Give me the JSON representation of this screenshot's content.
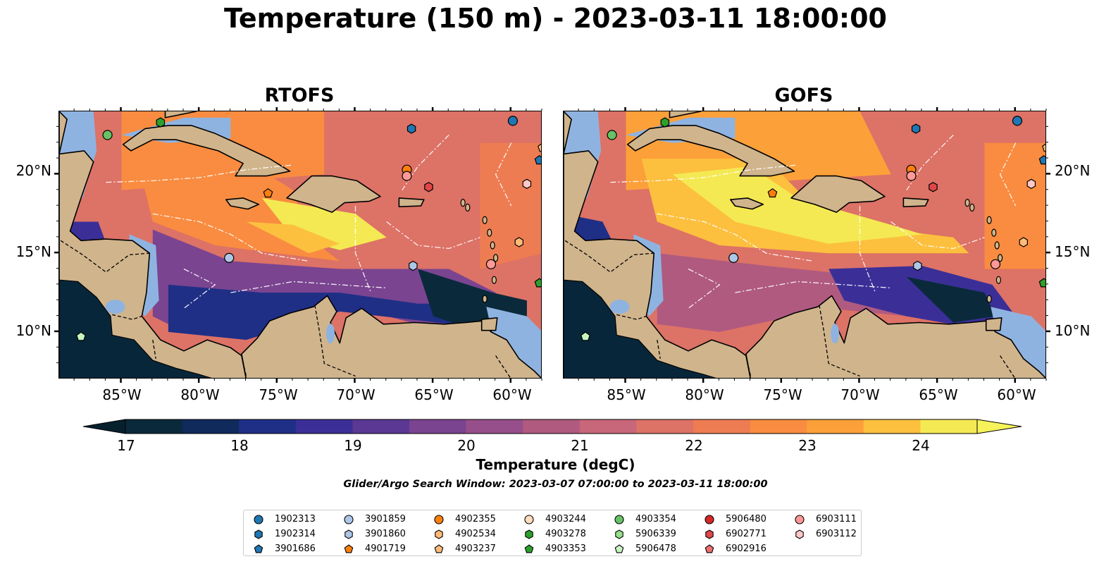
{
  "title": "Temperature (150 m) - 2023-03-11 18:00:00",
  "panels": [
    {
      "title": "RTOFS",
      "kind": "rtofs"
    },
    {
      "title": "GOFS",
      "kind": "gofs"
    }
  ],
  "x_ticks": [
    "85°W",
    "80°W",
    "75°W",
    "70°W",
    "65°W",
    "60°W"
  ],
  "y_ticks": [
    "20°N",
    "15°N",
    "10°N"
  ],
  "colorbar": {
    "label": "Temperature (degC)",
    "ticks": [
      "17",
      "18",
      "19",
      "20",
      "21",
      "22",
      "23",
      "24"
    ],
    "colors": [
      "#0a2a3b",
      "#102a5c",
      "#1f2f86",
      "#3b2f97",
      "#5a3894",
      "#7a4490",
      "#964f8a",
      "#b05a80",
      "#c8677a",
      "#dd7266",
      "#ee7c52",
      "#f98c40",
      "#fca03a",
      "#fcc03e",
      "#f4e952"
    ]
  },
  "search_window": "Glider/Argo Search Window: 2023-03-07 07:00:00 to 2023-03-11 18:00:00",
  "legend": {
    "items": [
      {
        "id": "1902313",
        "color": "#1f77b4",
        "shape": "circle"
      },
      {
        "id": "1902314",
        "color": "#1f77b4",
        "shape": "hexagon"
      },
      {
        "id": "3901686",
        "color": "#1f77b4",
        "shape": "pentagon"
      },
      {
        "id": "3901859",
        "color": "#aec7e8",
        "shape": "circle"
      },
      {
        "id": "3901860",
        "color": "#aec7e8",
        "shape": "hexagon"
      },
      {
        "id": "4901719",
        "color": "#ff7f0e",
        "shape": "pentagon"
      },
      {
        "id": "4902355",
        "color": "#ff7f0e",
        "shape": "circle"
      },
      {
        "id": "4902534",
        "color": "#ffbb78",
        "shape": "hexagon"
      },
      {
        "id": "4903237",
        "color": "#ffbb78",
        "shape": "pentagon"
      },
      {
        "id": "4903244",
        "color": "#ffdcbe",
        "shape": "circle"
      },
      {
        "id": "4903278",
        "color": "#2ca02c",
        "shape": "hexagon"
      },
      {
        "id": "4903353",
        "color": "#2ca02c",
        "shape": "pentagon"
      },
      {
        "id": "4903354",
        "color": "#66c266",
        "shape": "circle"
      },
      {
        "id": "5906339",
        "color": "#98df8a",
        "shape": "hexagon"
      },
      {
        "id": "5906478",
        "color": "#c7f5c0",
        "shape": "pentagon"
      },
      {
        "id": "5906480",
        "color": "#d62728",
        "shape": "circle"
      },
      {
        "id": "6902771",
        "color": "#e0474a",
        "shape": "hexagon"
      },
      {
        "id": "6902916",
        "color": "#ee6f70",
        "shape": "pentagon"
      },
      {
        "id": "6903111",
        "color": "#ff9896",
        "shape": "circle"
      },
      {
        "id": "6903112",
        "color": "#ffc8c7",
        "shape": "hexagon"
      }
    ]
  },
  "map_data": {
    "lon_range": [
      -89,
      -58
    ],
    "lat_range": [
      7,
      24
    ],
    "markers": [
      {
        "id": "3901859",
        "color": "#aec7e8",
        "shape": "circle",
        "lon": -78.1,
        "lat": 14.7
      },
      {
        "id": "4903354",
        "color": "#66c266",
        "shape": "circle",
        "lon": -85.9,
        "lat": 22.5
      },
      {
        "id": "4903278",
        "color": "#2ca02c",
        "shape": "hexagon",
        "lon": -82.5,
        "lat": 23.3
      },
      {
        "id": "1902313",
        "color": "#1f77b4",
        "shape": "circle",
        "lon": -59.9,
        "lat": 23.4
      },
      {
        "id": "1902314",
        "color": "#1f77b4",
        "shape": "hexagon",
        "lon": -66.4,
        "lat": 22.9
      },
      {
        "id": "4902355",
        "color": "#ff7f0e",
        "shape": "circle",
        "lon": -66.7,
        "lat": 20.3
      },
      {
        "id": "6903111",
        "color": "#ff9896",
        "shape": "circle",
        "lon": -66.7,
        "lat": 19.9
      },
      {
        "id": "6902771",
        "color": "#e0474a",
        "shape": "hexagon",
        "lon": -65.3,
        "lat": 19.2
      },
      {
        "id": "4901719",
        "color": "#ff7f0e",
        "shape": "pentagon",
        "lon": -75.6,
        "lat": 18.8
      },
      {
        "id": "6903112",
        "color": "#ffc8c7",
        "shape": "hexagon",
        "lon": -59.0,
        "lat": 19.4
      },
      {
        "id": "4902534",
        "color": "#ffbb78",
        "shape": "hexagon",
        "lon": -59.5,
        "lat": 15.7
      },
      {
        "id": "6903111",
        "color": "#ff9896",
        "shape": "circle",
        "lon": -61.3,
        "lat": 14.3
      },
      {
        "id": "3901860",
        "color": "#aec7e8",
        "shape": "hexagon",
        "lon": -66.3,
        "lat": 14.2
      },
      {
        "id": "4903353",
        "color": "#2ca02c",
        "shape": "pentagon",
        "lon": -58.2,
        "lat": 13.1
      },
      {
        "id": "5906478",
        "color": "#c7f5c0",
        "shape": "pentagon",
        "lon": -87.6,
        "lat": 9.7
      },
      {
        "id": "3901686",
        "color": "#1f77b4",
        "shape": "pentagon",
        "lon": -58.2,
        "lat": 20.9
      },
      {
        "id": "4903237",
        "color": "#ffbb78",
        "shape": "pentagon",
        "lon": -58.0,
        "lat": 21.7
      }
    ]
  }
}
